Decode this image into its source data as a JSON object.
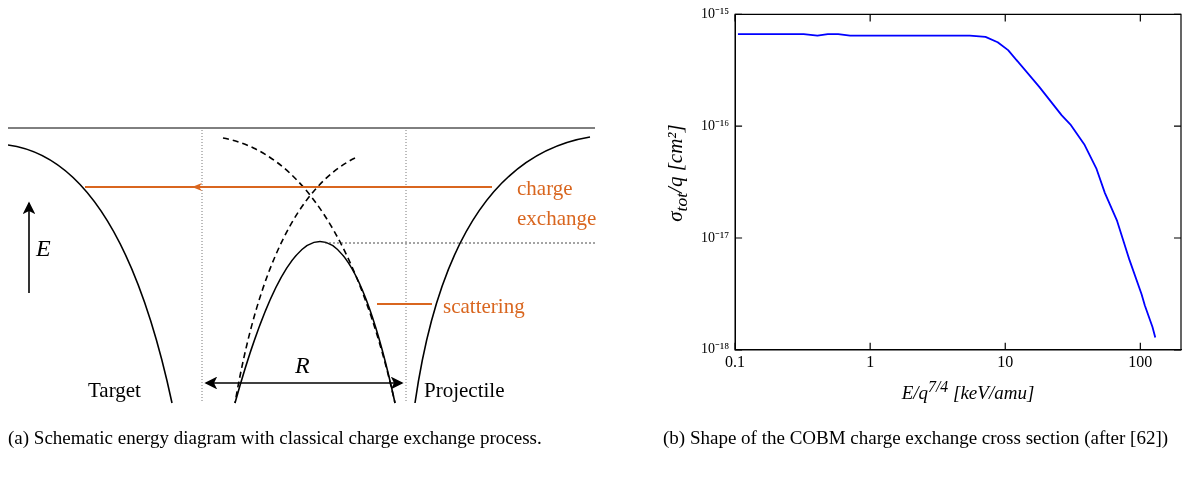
{
  "chart_data": [
    {
      "type": "other",
      "annotations": [
        "charge exchange",
        "scattering",
        "E",
        "R",
        "Target",
        "Projectile",
        "(a) Schematic energy diagram with classical charge exchange process."
      ]
    },
    {
      "type": "line",
      "log": "xy",
      "grid": false,
      "legend": false,
      "xlabel": "E/q$^{7/4}$ [keV/amu]",
      "ylabel": "σ$_{tot}$/q [cm²]",
      "xlim": [
        0.1,
        200
      ],
      "ylim": [
        1e-18,
        1e-15
      ],
      "xticks": [
        0.1,
        1,
        10,
        100
      ],
      "yticks": [
        {
          "value": 1e-18,
          "label": "10⁻¹⁸"
        },
        {
          "value": 1e-17,
          "label": "10⁻¹⁷"
        },
        {
          "value": 1e-16,
          "label": "10⁻¹⁶"
        },
        {
          "value": 1e-15,
          "label": "10⁻¹⁵"
        }
      ],
      "x": [
        0.105,
        0.322,
        0.407,
        0.486,
        0.58,
        0.71,
        5.47,
        7.14,
        8.79,
        10.5,
        17.8,
        26.2,
        30.3,
        38.4,
        47.2,
        54.7,
        67.3,
        82.7,
        102,
        108,
        123,
        129
      ],
      "series": [
        {
          "color": "#0000ff",
          "values": [
            6.65e-16,
            6.65e-16,
            6.47e-16,
            6.65e-16,
            6.65e-16,
            6.47e-16,
            6.47e-16,
            6.29e-16,
            5.64e-16,
            4.79e-16,
            2.26e-16,
            1.25e-16,
            1.04e-16,
            6.9e-17,
            4.2e-17,
            2.52e-17,
            1.42e-17,
            6.47e-18,
            3.16e-18,
            2.49e-18,
            1.6e-18,
            1.29e-18
          ]
        }
      ],
      "annotations": [
        "(b) Shape of the COBM charge exchange cross section (after [62])"
      ]
    }
  ]
}
